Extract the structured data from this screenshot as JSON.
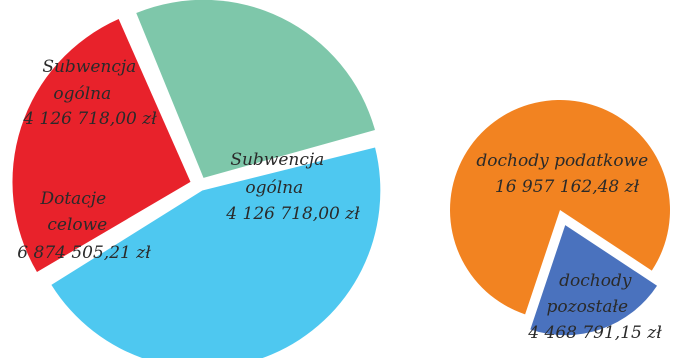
{
  "chart_data": [
    {
      "type": "pie",
      "slices": [
        {
          "label": [
            "Subwencja",
            "ogólna"
          ],
          "value_label": "4 126 718,00 zł",
          "value": 4126718.0,
          "color": "#7ec7aa"
        },
        {
          "label": [
            "Dotacje",
            "celowe"
          ],
          "value_label": "6 874 505,21 zł",
          "value": 6874505.21,
          "color": "#4ec8f0"
        },
        {
          "label": [
            "Subwencja",
            "ogólna"
          ],
          "value_label": "4 126 718,00 zł",
          "value": 4126718.0,
          "color": "#e8222b"
        }
      ]
    },
    {
      "type": "pie",
      "slices": [
        {
          "label": [
            "dochody podatkowe"
          ],
          "value_label": "16 957 162,48 zł",
          "value": 16957162.48,
          "color": "#f28321"
        },
        {
          "label": [
            "dochody",
            "pozostałe"
          ],
          "value_label": "4 468 791,15 zł",
          "value": 4468791.15,
          "color": "#4a72be"
        }
      ]
    }
  ]
}
